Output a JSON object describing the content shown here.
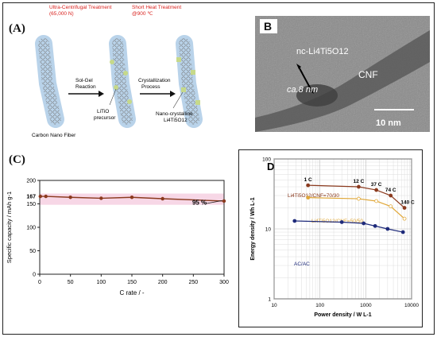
{
  "panel_a": {
    "label": "(A)",
    "step1_title": "Ultra-Centrifugal Treatment",
    "step1_detail": "(65,000 N)",
    "step2_title": "Short Heat Treatment",
    "step2_detail": "@900 ℃",
    "arrow1_line1": "Sol-Gel",
    "arrow1_line2": "Reaction",
    "arrow2_line1": "Crystallization",
    "arrow2_line2": "Process",
    "label_cnf": "Carbon Nano Fiber",
    "label_litio_1": "LiTiO",
    "label_litio_2": "precursor",
    "label_nc_1": "Nano-crystalline",
    "label_nc_2": "Li4Ti5O12",
    "colors": {
      "title": "#d9231f",
      "tube": "#b9d3ea",
      "particle": "#c6d98a"
    }
  },
  "panel_b": {
    "label": "B",
    "particle_label": "nc-Li4Ti5O12",
    "fiber_label": "CNF",
    "thickness": "ca.8 nm",
    "scale": "10 nm"
  },
  "panel_c": {
    "label": "(C)",
    "annotation": "95 %",
    "chart_data": {
      "type": "line",
      "x": [
        1,
        10,
        50,
        100,
        150,
        200,
        300
      ],
      "values": [
        166,
        166,
        164,
        162,
        164,
        161,
        156
      ],
      "xlabel": "C rate / -",
      "ylabel": "Specific capacity / mAh g-1",
      "xlim": [
        0,
        300
      ],
      "ylim": [
        0,
        200
      ],
      "xticks": [
        "0",
        "50",
        "100",
        "150",
        "200",
        "250",
        "300"
      ],
      "yticks": [
        "0",
        "50",
        "100",
        "150",
        "200"
      ],
      "yticks_special": "167",
      "grid": false,
      "colors": {
        "line": "#8b3a1e",
        "band": "#f3c6dc"
      }
    }
  },
  "panel_d": {
    "label": "D",
    "chart_data": {
      "type": "line",
      "xscale": "log",
      "yscale": "log",
      "xlim": [
        10,
        10000
      ],
      "ylim": [
        1,
        100
      ],
      "xlabel": "Power density / W L-1",
      "ylabel": "Energy density / Wh L-1",
      "xticks": [
        "10",
        "100",
        "1000",
        "10000"
      ],
      "yticks": [
        "1",
        "10",
        "100"
      ],
      "grid": true,
      "series": [
        {
          "name": "Li4Ti5O12/CNF=70/30",
          "color": "#8b3a1e",
          "x": [
            55,
            700,
            1700,
            3500,
            7000
          ],
          "values": [
            42,
            40,
            36,
            30,
            20
          ]
        },
        {
          "name": "Li4Ti5O12/CNF=50/50",
          "color": "#e0a83a",
          "x": [
            55,
            700,
            1700,
            3500,
            7000
          ],
          "values": [
            28,
            27,
            25,
            21,
            14
          ]
        },
        {
          "name": "AC/AC",
          "color": "#1e2a7a",
          "x": [
            28,
            300,
            900,
            1600,
            3000,
            6500
          ],
          "values": [
            13,
            12.5,
            12,
            11,
            10,
            9
          ]
        }
      ],
      "point_labels": [
        "1 C",
        "12 C",
        "37 C",
        "74 C",
        "140 C"
      ]
    }
  }
}
